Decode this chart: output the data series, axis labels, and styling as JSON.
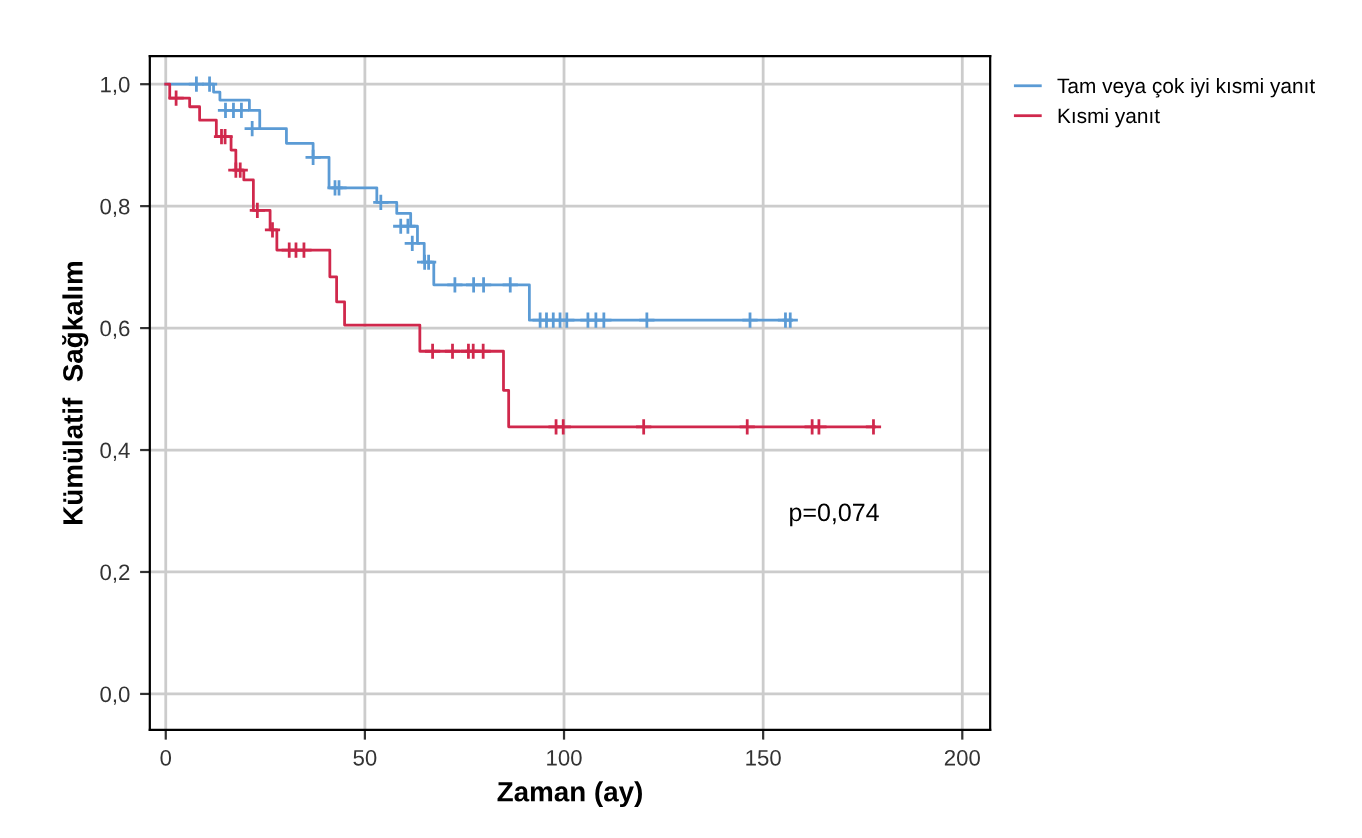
{
  "chart_data": {
    "type": "step",
    "xlabel": "Zaman (ay)",
    "ylabel": "Kümülatif  Sağkalım",
    "xlim": [
      -4,
      207
    ],
    "ylim": [
      -0.059,
      1.046
    ],
    "xticks": [
      0,
      50,
      100,
      150,
      200
    ],
    "yticks": [
      {
        "value": 0,
        "label": "0,0"
      },
      {
        "value": 0.2,
        "label": "0,2"
      },
      {
        "value": 0.4,
        "label": "0,4"
      },
      {
        "value": 0.6,
        "label": "0,6"
      },
      {
        "value": 0.8,
        "label": "0,8"
      },
      {
        "value": 1,
        "label": "1,0"
      }
    ],
    "grid": true,
    "legend": "top right",
    "line_style": "solid",
    "annotations": [
      "p=0,074"
    ],
    "series": [
      {
        "name": "Tam veya çok iyi kısmi yanıt",
        "color": "#5b9bd5",
        "x": [
          0,
          12,
          13.6,
          21,
          23.6,
          30.3,
          37,
          41,
          53,
          58,
          61.5,
          63.2,
          64.9,
          67.3,
          91.3,
          157
        ],
        "values": [
          1.0,
          0.987,
          0.974,
          0.957,
          0.927,
          0.903,
          0.88,
          0.83,
          0.806,
          0.788,
          0.767,
          0.739,
          0.708,
          0.671,
          0.613,
          0.613
        ]
      },
      {
        "name": "Kısmi yanıt",
        "color": "#d0284c",
        "x": [
          0,
          1,
          6,
          8.5,
          12.7,
          16.4,
          17.6,
          19.6,
          22,
          26.2,
          27.9,
          41.2,
          42.9,
          44.9,
          63.8,
          84.8,
          86.1,
          178
        ],
        "values": [
          1.0,
          0.977,
          0.963,
          0.941,
          0.914,
          0.892,
          0.859,
          0.843,
          0.793,
          0.761,
          0.728,
          0.684,
          0.643,
          0.605,
          0.562,
          0.498,
          0.438,
          0.438
        ]
      },
      {
        "color": "#5b9bd5",
        "type": "scatter",
        "marker": "cross",
        "x": [
          7.7,
          11,
          15,
          17,
          19,
          21.7,
          37,
          42.5,
          43.5,
          54,
          59,
          60.8,
          61.9,
          65,
          66,
          72.6,
          77.3,
          79.8,
          86.5,
          94,
          95.6,
          97.3,
          99,
          100.7,
          106,
          108,
          110,
          120.8,
          146.7,
          155.6,
          156.8
        ],
        "values": [
          1,
          1,
          0.957,
          0.957,
          0.957,
          0.927,
          0.88,
          0.83,
          0.83,
          0.806,
          0.767,
          0.767,
          0.739,
          0.708,
          0.708,
          0.671,
          0.671,
          0.671,
          0.671,
          0.613,
          0.613,
          0.613,
          0.613,
          0.613,
          0.613,
          0.613,
          0.613,
          0.613,
          0.613,
          0.613,
          0.613
        ]
      },
      {
        "color": "#d0284c",
        "type": "scatter",
        "marker": "cross",
        "x": [
          2.6,
          14,
          14.9,
          17.6,
          18.7,
          23,
          26.8,
          31,
          32.7,
          34.7,
          67,
          72,
          76,
          77.2,
          79.7,
          98,
          99.8,
          120,
          146,
          162.3,
          164,
          177.7
        ],
        "values": [
          0.977,
          0.914,
          0.914,
          0.859,
          0.859,
          0.793,
          0.761,
          0.728,
          0.728,
          0.728,
          0.562,
          0.562,
          0.562,
          0.562,
          0.562,
          0.438,
          0.438,
          0.438,
          0.438,
          0.438,
          0.438,
          0.438
        ]
      }
    ]
  }
}
